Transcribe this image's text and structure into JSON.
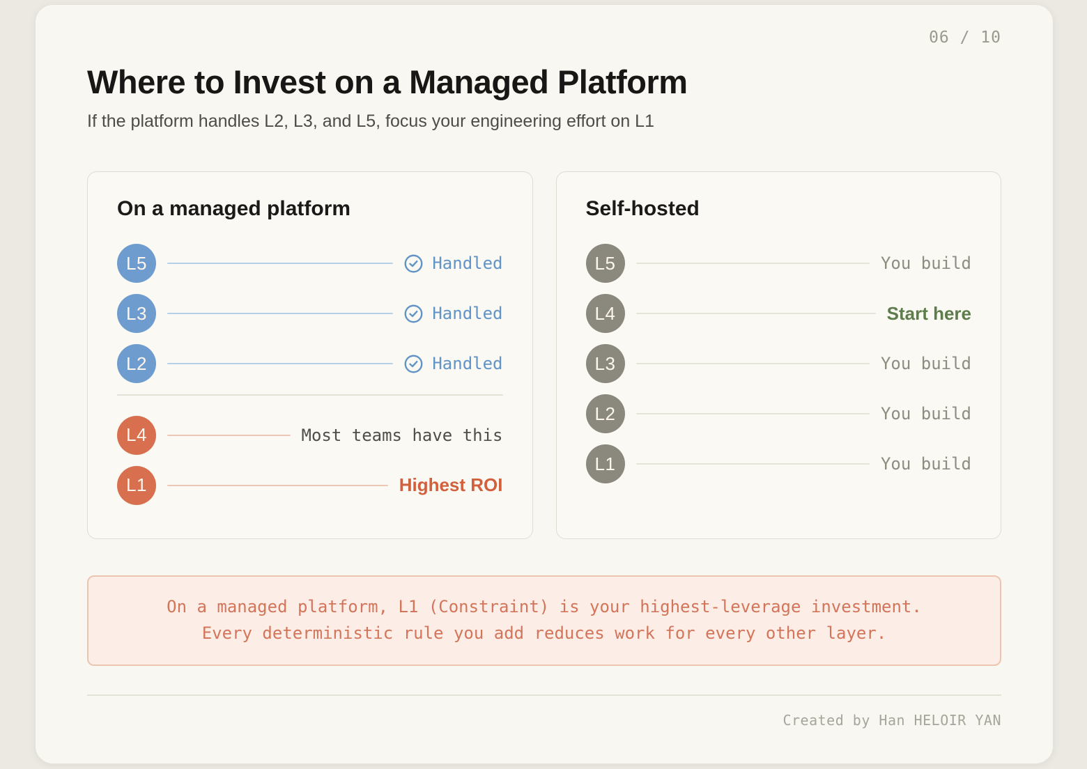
{
  "page": {
    "counter": "06 / 10",
    "title": "Where to Invest on a Managed Platform",
    "subtitle": "If the platform handles L2, L3, and L5, focus your engineering effort on L1",
    "footer": "Created by Han HELOIR YAN"
  },
  "colors": {
    "blue_badge": "#6f9cce",
    "blue_line": "#b7cfe7",
    "blue_text": "#6193c7",
    "orange_badge": "#d8704f",
    "orange_line": "#eec7b4",
    "roi_text": "#d2603c",
    "grey_badge": "#8b887e",
    "grey_line": "#e6e3d9",
    "grey_text": "#8e8b81",
    "green_text": "#5d7c4c",
    "note_text": "#4f4e4b"
  },
  "panels": [
    {
      "title": "On a managed platform",
      "rows": [
        {
          "badge": "L5",
          "variant": "blue",
          "label": "Handled",
          "style": "handled",
          "icon": "check-circle"
        },
        {
          "badge": "L3",
          "variant": "blue",
          "label": "Handled",
          "style": "handled",
          "icon": "check-circle"
        },
        {
          "badge": "L2",
          "variant": "blue",
          "label": "Handled",
          "style": "handled",
          "icon": "check-circle"
        },
        {
          "divider": true
        },
        {
          "badge": "L4",
          "variant": "orange",
          "label": "Most teams have this",
          "style": "note"
        },
        {
          "badge": "L1",
          "variant": "orange",
          "label": "Highest ROI",
          "style": "roi"
        }
      ]
    },
    {
      "title": "Self-hosted",
      "rows": [
        {
          "badge": "L5",
          "variant": "grey",
          "label": "You build",
          "style": "build"
        },
        {
          "badge": "L4",
          "variant": "grey",
          "label": "Start here",
          "style": "start"
        },
        {
          "badge": "L3",
          "variant": "grey",
          "label": "You build",
          "style": "build"
        },
        {
          "badge": "L2",
          "variant": "grey",
          "label": "You build",
          "style": "build"
        },
        {
          "badge": "L1",
          "variant": "grey",
          "label": "You build",
          "style": "build"
        }
      ]
    }
  ],
  "callout": {
    "line1": "On a managed platform, L1 (Constraint) is your highest-leverage investment.",
    "line2": "Every deterministic rule you add reduces work for every other layer."
  }
}
